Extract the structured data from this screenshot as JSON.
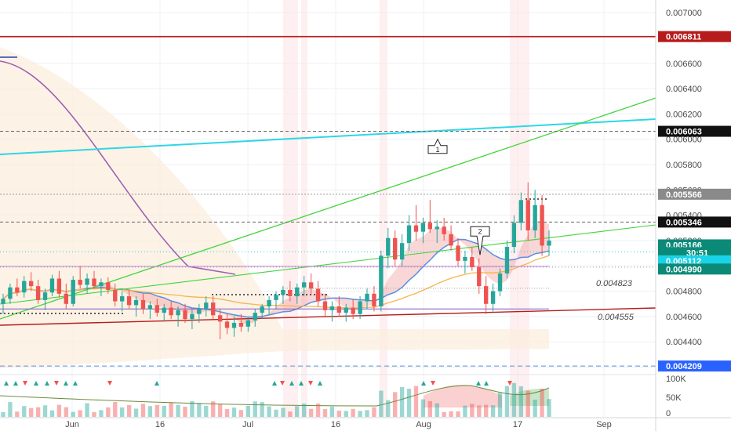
{
  "colors": {
    "bg": "#ffffff",
    "grid": "#eef0f3",
    "up": "#26a69a",
    "down": "#ef5350",
    "axis_text": "#4a4a4a",
    "resistance_red": "#b71c1c",
    "cyan_line": "#2fd6e8",
    "green_line": "#43d43b",
    "purple_ma": "#9c62b3",
    "orange_ma": "#f5b54c",
    "blue_ma": "#5b8fe0",
    "cloud": "#fbeedd",
    "tag_black": "#111111",
    "tag_green": "#0b8a78",
    "tag_cyan": "#19d3e8",
    "tag_red": "#b71c1c",
    "tag_gray": "#8a8a8a",
    "tag_blue": "#2962ff"
  },
  "chart_data": {
    "type": "candlestick",
    "xlabel": "",
    "ylabel": "",
    "y_axis_position": "right",
    "ylim": [
      0.00416,
      0.0071
    ],
    "y_ticks": [
      "0.007000",
      "0.006800",
      "0.006600",
      "0.006400",
      "0.006200",
      "0.006000",
      "0.005800",
      "0.005600",
      "0.005400",
      "0.005200",
      "0.005000",
      "0.004800",
      "0.004600",
      "0.004400",
      "0.004200"
    ],
    "x_ticks": [
      "Jun",
      "16",
      "Jul",
      "16",
      "Aug",
      "17",
      "Sep"
    ],
    "price_tags": [
      {
        "label": "0.006811",
        "value": 0.006811,
        "style": "red"
      },
      {
        "label": "0.006063",
        "value": 0.006063,
        "style": "black"
      },
      {
        "label": "0.005566",
        "value": 0.005566,
        "style": "gray"
      },
      {
        "label": "0.005346",
        "value": 0.005346,
        "style": "black"
      },
      {
        "label": "0.005166",
        "value": 0.005166,
        "style": "green"
      },
      {
        "label": "30:51",
        "value": 0.005105,
        "style": "green"
      },
      {
        "label": "0.005112",
        "value": 0.00504,
        "style": "cyan"
      },
      {
        "label": "0.004990",
        "value": 0.004975,
        "style": "green"
      },
      {
        "label": "0.004209",
        "value": 0.004209,
        "style": "blue"
      }
    ],
    "level_labels": [
      {
        "label": "0.004823",
        "value": 0.004823
      },
      {
        "label": "0.004555",
        "value": 0.004555
      }
    ],
    "markers": [
      {
        "label": "1",
        "value": 0.00595
      },
      {
        "label": "2",
        "value": 0.00526
      }
    ],
    "candles": [
      [
        0.0047,
        0.00478,
        0.00462,
        0.00474
      ],
      [
        0.00474,
        0.00486,
        0.0047,
        0.00483
      ],
      [
        0.00483,
        0.0049,
        0.00476,
        0.00479
      ],
      [
        0.00479,
        0.00492,
        0.00475,
        0.00488
      ],
      [
        0.00488,
        0.00495,
        0.0048,
        0.00484
      ],
      [
        0.00484,
        0.00489,
        0.0047,
        0.00473
      ],
      [
        0.00473,
        0.00482,
        0.00465,
        0.00479
      ],
      [
        0.00479,
        0.00493,
        0.00476,
        0.0049
      ],
      [
        0.0049,
        0.00496,
        0.00475,
        0.00478
      ],
      [
        0.00478,
        0.00486,
        0.00466,
        0.0047
      ],
      [
        0.0047,
        0.00492,
        0.00468,
        0.00489
      ],
      [
        0.00489,
        0.005,
        0.00482,
        0.00485
      ],
      [
        0.00485,
        0.00494,
        0.00478,
        0.0049
      ],
      [
        0.0049,
        0.00496,
        0.00482,
        0.00484
      ],
      [
        0.00484,
        0.0049,
        0.00476,
        0.00487
      ],
      [
        0.00487,
        0.00491,
        0.00478,
        0.00481
      ],
      [
        0.00481,
        0.00486,
        0.00468,
        0.00472
      ],
      [
        0.00472,
        0.0048,
        0.00464,
        0.00476
      ],
      [
        0.00476,
        0.00481,
        0.00466,
        0.00469
      ],
      [
        0.00469,
        0.00476,
        0.0046,
        0.00473
      ],
      [
        0.00473,
        0.00478,
        0.00462,
        0.00466
      ],
      [
        0.00466,
        0.00472,
        0.00458,
        0.00469
      ],
      [
        0.00469,
        0.00474,
        0.0046,
        0.00463
      ],
      [
        0.00463,
        0.0047,
        0.00456,
        0.00467
      ],
      [
        0.00467,
        0.00472,
        0.00458,
        0.00461
      ],
      [
        0.00461,
        0.00468,
        0.00452,
        0.00465
      ],
      [
        0.00465,
        0.0047,
        0.00455,
        0.00458
      ],
      [
        0.00458,
        0.00466,
        0.0045,
        0.00462
      ],
      [
        0.00462,
        0.0047,
        0.00455,
        0.00466
      ],
      [
        0.00466,
        0.00476,
        0.0046,
        0.00471
      ],
      [
        0.00471,
        0.00476,
        0.00458,
        0.00461
      ],
      [
        0.00461,
        0.00466,
        0.00442,
        0.00456
      ],
      [
        0.00456,
        0.00462,
        0.00446,
        0.00451
      ],
      [
        0.00451,
        0.0046,
        0.00444,
        0.00455
      ],
      [
        0.00455,
        0.00462,
        0.00448,
        0.00452
      ],
      [
        0.00452,
        0.0046,
        0.00448,
        0.00457
      ],
      [
        0.00457,
        0.00466,
        0.00452,
        0.00463
      ],
      [
        0.00463,
        0.0047,
        0.00458,
        0.00468
      ],
      [
        0.00468,
        0.00476,
        0.00462,
        0.00473
      ],
      [
        0.00473,
        0.0048,
        0.00466,
        0.00477
      ],
      [
        0.00477,
        0.00484,
        0.0047,
        0.00481
      ],
      [
        0.00481,
        0.00488,
        0.00472,
        0.00476
      ],
      [
        0.00476,
        0.00486,
        0.0047,
        0.00483
      ],
      [
        0.00483,
        0.00492,
        0.00476,
        0.00487
      ],
      [
        0.00487,
        0.00494,
        0.00478,
        0.00482
      ],
      [
        0.00482,
        0.00488,
        0.00468,
        0.00472
      ],
      [
        0.00472,
        0.00478,
        0.0046,
        0.00465
      ],
      [
        0.00465,
        0.00472,
        0.00456,
        0.00468
      ],
      [
        0.00468,
        0.00476,
        0.0046,
        0.00463
      ],
      [
        0.00463,
        0.0047,
        0.00456,
        0.00467
      ],
      [
        0.00467,
        0.00474,
        0.00458,
        0.00462
      ],
      [
        0.00462,
        0.00476,
        0.00458,
        0.00472
      ],
      [
        0.00472,
        0.00482,
        0.00466,
        0.00478
      ],
      [
        0.00478,
        0.00484,
        0.00464,
        0.00468
      ],
      [
        0.00468,
        0.00512,
        0.00464,
        0.00508
      ],
      [
        0.00508,
        0.0053,
        0.00498,
        0.00522
      ],
      [
        0.00522,
        0.00528,
        0.005,
        0.00505
      ],
      [
        0.00505,
        0.00525,
        0.005,
        0.00518
      ],
      [
        0.00518,
        0.0054,
        0.00512,
        0.00532
      ],
      [
        0.00532,
        0.00548,
        0.0052,
        0.00527
      ],
      [
        0.00527,
        0.00538,
        0.00518,
        0.00534
      ],
      [
        0.00534,
        0.00552,
        0.00526,
        0.00529
      ],
      [
        0.00529,
        0.00536,
        0.00518,
        0.00531
      ],
      [
        0.00531,
        0.00538,
        0.0052,
        0.00525
      ],
      [
        0.00525,
        0.00532,
        0.00512,
        0.00516
      ],
      [
        0.00516,
        0.00522,
        0.005,
        0.00504
      ],
      [
        0.00504,
        0.00512,
        0.00494,
        0.00507
      ],
      [
        0.00507,
        0.00515,
        0.00496,
        0.00499
      ],
      [
        0.00499,
        0.00506,
        0.00478,
        0.00484
      ],
      [
        0.00484,
        0.00492,
        0.00462,
        0.0047
      ],
      [
        0.0047,
        0.00486,
        0.00464,
        0.0048
      ],
      [
        0.0048,
        0.00498,
        0.00476,
        0.00494
      ],
      [
        0.00494,
        0.0052,
        0.0049,
        0.00515
      ],
      [
        0.00515,
        0.0054,
        0.0051,
        0.00534
      ],
      [
        0.00534,
        0.00558,
        0.00528,
        0.00552
      ],
      [
        0.00552,
        0.00566,
        0.0052,
        0.00528
      ],
      [
        0.00528,
        0.0056,
        0.00522,
        0.00548
      ],
      [
        0.00548,
        0.00556,
        0.00508,
        0.00516
      ],
      [
        0.00516,
        0.00528,
        0.00508,
        0.0052
      ]
    ]
  }
}
